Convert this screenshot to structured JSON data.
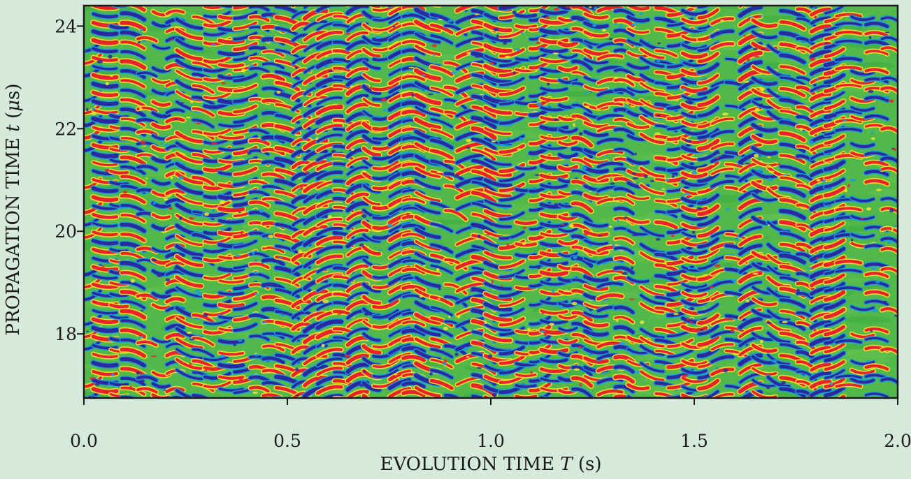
{
  "chart_data": {
    "type": "heatmap",
    "title": "",
    "xlabel": {
      "prefix": "EVOLUTION TIME ",
      "var": "T",
      "suffix": " (s)"
    },
    "ylabel": {
      "prefix": "PROPAGATION TIME ",
      "var": "t",
      "suffix": " (",
      "unit_greek": "μ",
      "unit_rest": "s)"
    },
    "xlim": [
      0.0,
      2.0
    ],
    "ylim": [
      16.75,
      24.4
    ],
    "x_ticks": [
      {
        "value": 0.0,
        "label": "0.0"
      },
      {
        "value": 0.5,
        "label": "0.5"
      },
      {
        "value": 1.0,
        "label": "1.0"
      },
      {
        "value": 1.5,
        "label": "1.5"
      },
      {
        "value": 2.0,
        "label": "2.0"
      }
    ],
    "y_ticks": [
      {
        "value": 18,
        "label": "18"
      },
      {
        "value": 20,
        "label": "20"
      },
      {
        "value": 22,
        "label": "22"
      },
      {
        "value": 24,
        "label": "24"
      }
    ],
    "colormap": [
      "#2a2aa0",
      "#1a9fd8",
      "#4db849",
      "#f2e62a",
      "#e8232a"
    ],
    "grid": false,
    "legend": "none",
    "background": "#d6eadc"
  }
}
